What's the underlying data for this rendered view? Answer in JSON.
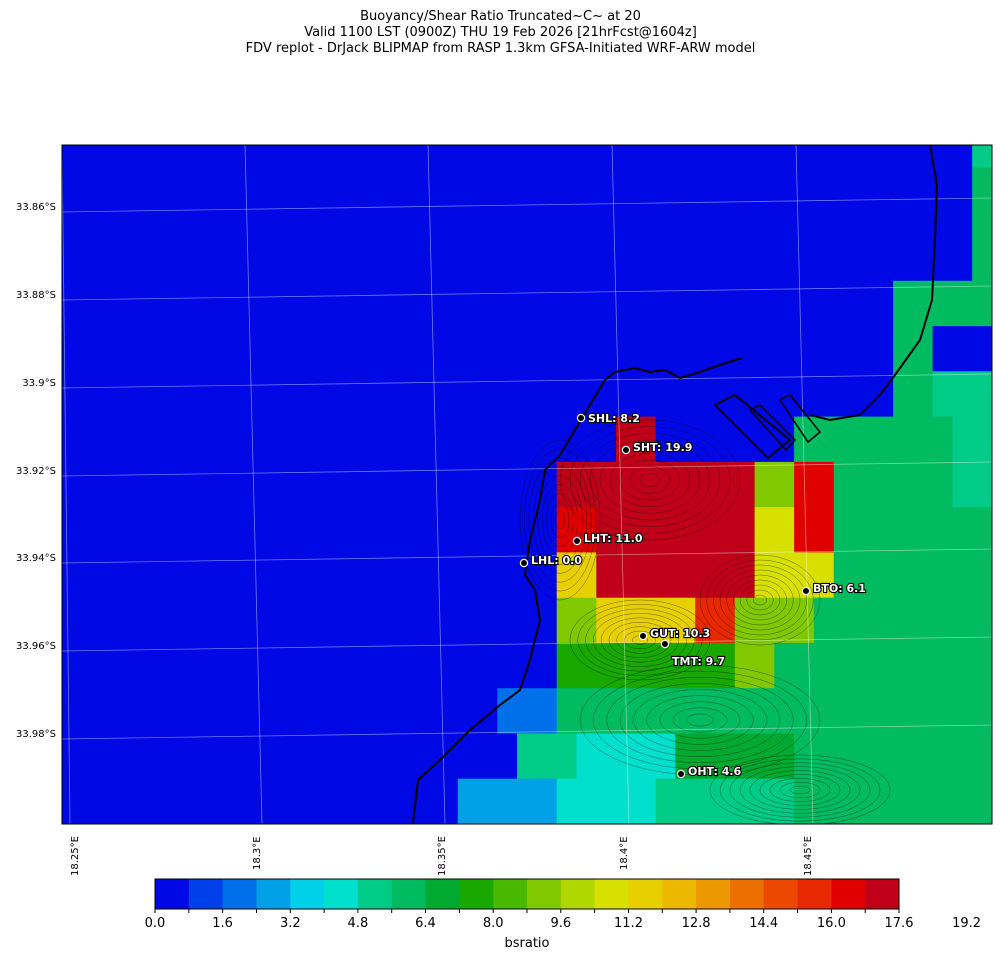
{
  "title": {
    "line1": "Buoyancy/Shear Ratio Truncated~C~    at 20",
    "line2": "Valid 1100 LST (0900Z) THU 19 Feb 2026 [21hrFcst@1604z]",
    "line3": "FDV replot - DrJack BLIPMAP from RASP 1.3km GFSA-Initiated WRF-ARW model"
  },
  "lat_labels": [
    "33.86°S",
    "33.88°S",
    "33.9°S",
    "33.92°S",
    "33.94°S",
    "33.96°S",
    "33.98°S"
  ],
  "lon_labels": [
    "18.25°E",
    "18.3°E",
    "18.35°E",
    "18.4°E",
    "18.45°E"
  ],
  "stations": [
    {
      "name": "SHL",
      "value": "8.2",
      "label": "SHL: 8.2"
    },
    {
      "name": "SHT",
      "value": "19.9",
      "label": "SHT: 19.9"
    },
    {
      "name": "LHT",
      "value": "11.0",
      "label": "LHT: 11.0"
    },
    {
      "name": "LHL",
      "value": "0.0",
      "label": "LHL: 0.0"
    },
    {
      "name": "BTO",
      "value": "6.1",
      "label": "BTO: 6.1"
    },
    {
      "name": "GUT",
      "value": "10.3",
      "label": "GUT: 10.3"
    },
    {
      "name": "TMT",
      "value": "9.7",
      "label": "TMT: 9.7"
    },
    {
      "name": "OHT",
      "value": "4.6",
      "label": "OHT: 4.6"
    }
  ],
  "colorbar": {
    "title": "bsratio",
    "tick_labels": [
      "0.0",
      "1.6",
      "3.2",
      "4.8",
      "6.4",
      "8.0",
      "9.6",
      "11.2",
      "12.8",
      "14.4",
      "16.0",
      "17.6",
      "19.2"
    ],
    "colors": [
      "#0008e6",
      "#0040ea",
      "#0070ea",
      "#00a0e6",
      "#00d0e8",
      "#00e0cc",
      "#00cc88",
      "#00bb60",
      "#00aa30",
      "#18a800",
      "#48b800",
      "#80c800",
      "#b0d800",
      "#d8e000",
      "#e8d000",
      "#ecb800",
      "#ec9800",
      "#ec7000",
      "#ec4800",
      "#e82800",
      "#e00000",
      "#c00018"
    ]
  },
  "grid": [
    "00000000000000000000000000000000000000000000006",
    "00000000000000000000000000000000000000000000007",
    "00000000000000000000000000000000000000000000007",
    "00000000000000000000000000000000000000000000007",
    "00000000000000000000000000000000000000000000007",
    "00000000000000000000000000000000000000000000007",
    "00000000000000000000000000000000000000000077777",
    "00000000000000000000000000000000000000000077777",
    "00000000000000000000000000000000000000000077000",
    "00000000000000000000000000000000000000000077000",
    "00000000000000000000000000000000000000000077666",
    "00000000000000000000000000000000000000000077666",
    "0000000000000000000000000000LL000000077777777666",
    "0000000000000000000000000000LL000000077777777666",
    "0000000000000000000000000LLLLLLLLLLBBKK777777666",
    "0000000000000000000000000LLLLLLLLLLBBKK777777666",
    "0000000000000000000000000KKLLLLLLLLDDKK777777777",
    "0000000000000000000000000KKLLLLLLLLDDKK777777777",
    "0000000000000000000000000EELLLLLLLLDDDD777777777",
    "0000000000000000000000000EELLLLLLLLDDDD777777777",
    "0000000000000000000000000BBEEEEEJJBBBB777777777",
    "0000000000000000000000000BBEEEEEJJBBBB777777777",
    "0000000000000000000000000999999999BB77777777777",
    "0000000000000000000000000999999999BB77777777777",
    "0000000000000000000000222777777777777777777777777",
    "0000000000000000000000222777777777777777777777777",
    "0000000000000000000000066655555888888777777777777",
    "0000000000000000000000066655555888888777777777777",
    "0000000000000000000033333555556666666777777777777",
    "0000000000000000000033333555556666666777777777777"
  ]
}
